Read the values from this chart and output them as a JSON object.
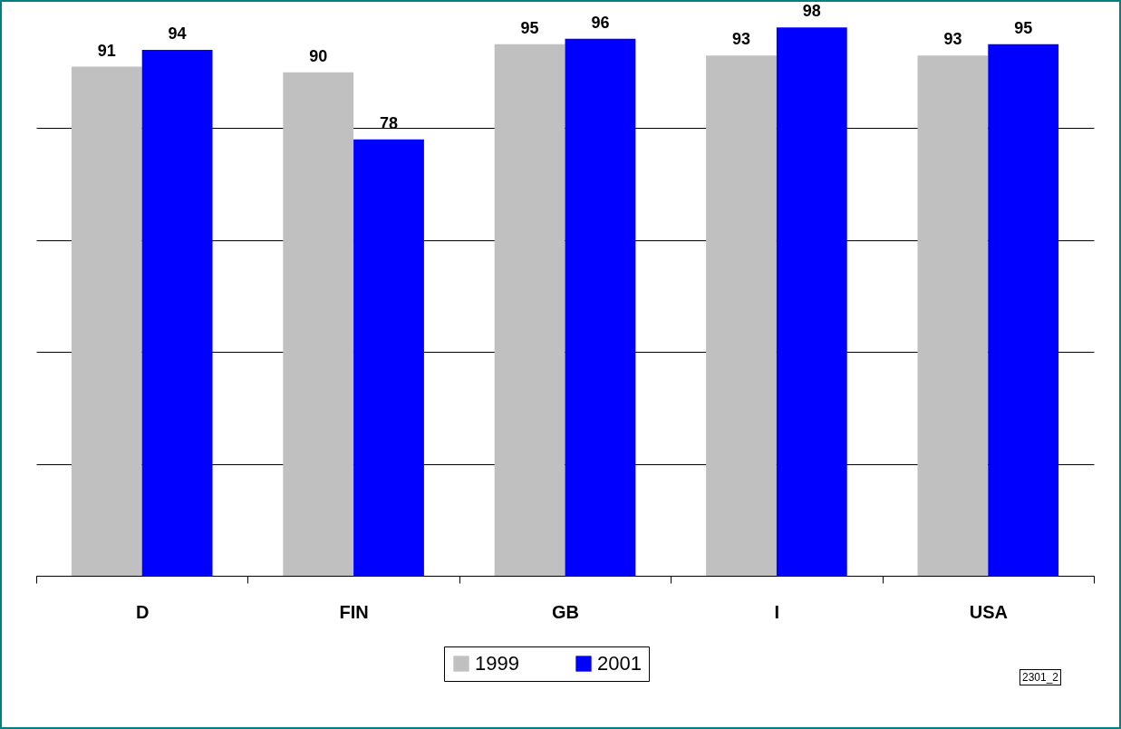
{
  "chart_data": {
    "type": "bar",
    "categories": [
      "D",
      "FIN",
      "GB",
      "I",
      "USA"
    ],
    "series": [
      {
        "name": "1999",
        "color": "#c0c0c0",
        "values": [
          91,
          90,
          95,
          93,
          93
        ]
      },
      {
        "name": "2001",
        "color": "#0000ff",
        "values": [
          94,
          78,
          96,
          98,
          95
        ]
      }
    ],
    "yticks": [
      0,
      20,
      40,
      60,
      80
    ],
    "grid": "y",
    "tick_labels": "x",
    "data_labels": true,
    "legend": "bottom",
    "annotations": [
      "2301_2"
    ]
  }
}
